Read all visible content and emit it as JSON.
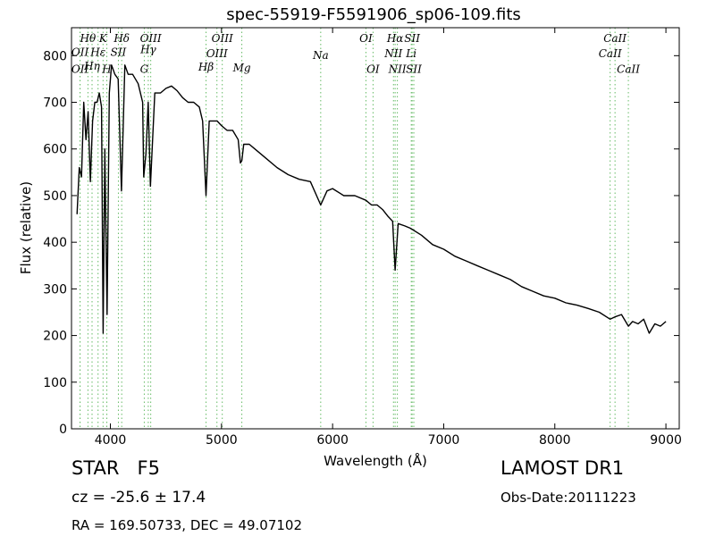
{
  "chart_data": {
    "type": "line",
    "title": "spec-55919-F5591906_sp06-109.fits",
    "xlabel": "Wavelength (Å)",
    "ylabel": "Flux (relative)",
    "xlim": [
      3650,
      9120
    ],
    "ylim": [
      0,
      860
    ],
    "xticks": [
      4000,
      5000,
      6000,
      7000,
      8000,
      9000
    ],
    "yticks": [
      0,
      100,
      200,
      300,
      400,
      500,
      600,
      700,
      800
    ],
    "grid": false,
    "series": [
      {
        "color": "#000000",
        "x": [
          3700,
          3720,
          3740,
          3760,
          3780,
          3800,
          3820,
          3840,
          3860,
          3880,
          3900,
          3920,
          3935,
          3950,
          3970,
          3990,
          4010,
          4040,
          4070,
          4100,
          4130,
          4160,
          4200,
          4250,
          4290,
          4300,
          4320,
          4340,
          4360,
          4400,
          4450,
          4500,
          4550,
          4600,
          4650,
          4700,
          4750,
          4800,
          4830,
          4861,
          4890,
          4920,
          4960,
          5000,
          5050,
          5100,
          5150,
          5170,
          5183,
          5200,
          5250,
          5300,
          5400,
          5500,
          5600,
          5700,
          5800,
          5893,
          5950,
          6000,
          6100,
          6200,
          6300,
          6350,
          6400,
          6450,
          6500,
          6540,
          6563,
          6590,
          6650,
          6700,
          6800,
          6900,
          7000,
          7100,
          7200,
          7300,
          7400,
          7500,
          7600,
          7700,
          7800,
          7900,
          8000,
          8100,
          8200,
          8300,
          8400,
          8498,
          8542,
          8600,
          8662,
          8700,
          8750,
          8800,
          8850,
          8900,
          8950,
          9000
        ],
        "values": [
          460,
          560,
          540,
          700,
          620,
          680,
          530,
          660,
          700,
          700,
          720,
          690,
          205,
          600,
          245,
          720,
          780,
          760,
          750,
          510,
          780,
          760,
          760,
          740,
          700,
          540,
          590,
          700,
          520,
          720,
          720,
          730,
          735,
          725,
          710,
          700,
          700,
          690,
          660,
          500,
          660,
          660,
          660,
          650,
          640,
          640,
          620,
          570,
          575,
          610,
          610,
          600,
          580,
          560,
          545,
          535,
          530,
          480,
          510,
          515,
          500,
          500,
          490,
          480,
          480,
          470,
          455,
          445,
          340,
          440,
          435,
          430,
          415,
          395,
          385,
          370,
          360,
          350,
          340,
          330,
          320,
          305,
          295,
          285,
          280,
          270,
          265,
          258,
          250,
          235,
          240,
          245,
          220,
          230,
          225,
          235,
          205,
          225,
          220,
          230
        ]
      }
    ],
    "lines": [
      {
        "name": "OII",
        "x": 3727,
        "label_value": 800,
        "italic": true
      },
      {
        "name": "OII",
        "x": 3727,
        "label_value": 763,
        "italic": true
      },
      {
        "name": "Hθ",
        "x": 3798,
        "label_value": 829,
        "italic": true
      },
      {
        "name": "Hη",
        "x": 3835,
        "label_value": 770,
        "italic": true
      },
      {
        "name": "Hε",
        "x": 3889,
        "label_value": 800,
        "italic": true
      },
      {
        "name": "K",
        "x": 3934,
        "label_value": 829,
        "italic": true
      },
      {
        "name": "H",
        "x": 3968,
        "label_value": 763,
        "italic": true
      },
      {
        "name": "SII",
        "x": 4072,
        "label_value": 800,
        "italic": true
      },
      {
        "name": "Hδ",
        "x": 4102,
        "label_value": 829,
        "italic": true
      },
      {
        "name": "G",
        "x": 4305,
        "label_value": 763,
        "italic": true
      },
      {
        "name": "Hγ",
        "x": 4341,
        "label_value": 805,
        "italic": true
      },
      {
        "name": "OIII",
        "x": 4363,
        "label_value": 829,
        "italic": true
      },
      {
        "name": "Hβ",
        "x": 4861,
        "label_value": 768,
        "italic": true
      },
      {
        "name": "OIII",
        "x": 4959,
        "label_value": 797,
        "italic": true
      },
      {
        "name": "OIII",
        "x": 5007,
        "label_value": 829,
        "italic": true
      },
      {
        "name": "Mg",
        "x": 5183,
        "label_value": 766,
        "italic": true
      },
      {
        "name": "Na",
        "x": 5893,
        "label_value": 793,
        "italic": true
      },
      {
        "name": "OI",
        "x": 6300,
        "label_value": 829,
        "italic": true
      },
      {
        "name": "OI",
        "x": 6364,
        "label_value": 763,
        "italic": true
      },
      {
        "name": "NII",
        "x": 6548,
        "label_value": 797,
        "italic": true
      },
      {
        "name": "NII",
        "x": 6583,
        "label_value": 763,
        "italic": true
      },
      {
        "name": "Hα",
        "x": 6563,
        "label_value": 829,
        "italic": true
      },
      {
        "name": "Li",
        "x": 6708,
        "label_value": 797,
        "italic": true
      },
      {
        "name": "SII",
        "x": 6716,
        "label_value": 829,
        "italic": true
      },
      {
        "name": "SII",
        "x": 6731,
        "label_value": 763,
        "italic": true
      },
      {
        "name": "CaII",
        "x": 8498,
        "label_value": 797,
        "italic": true
      },
      {
        "name": "CaII",
        "x": 8542,
        "label_value": 829,
        "italic": true
      },
      {
        "name": "CaII",
        "x": 8662,
        "label_value": 763,
        "italic": true
      }
    ]
  },
  "footer": {
    "star_class": "STAR   F5",
    "cz": "cz = -25.6 ± 17.4",
    "radec": "RA = 169.50733, DEC = 49.07102",
    "survey": "LAMOST DR1",
    "obs_date": "Obs-Date:20111223"
  },
  "colors": {
    "spectrum": "#000000",
    "line_markers": "#66bb66"
  }
}
